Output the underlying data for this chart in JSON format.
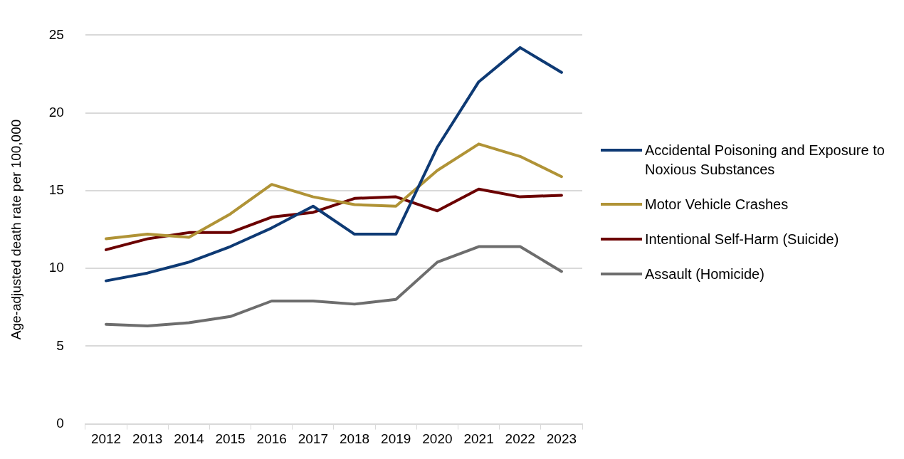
{
  "chart_data": {
    "type": "line",
    "ylabel": "Age-adjusted death rate per 100,000",
    "categories": [
      "2012",
      "2013",
      "2014",
      "2015",
      "2016",
      "2017",
      "2018",
      "2019",
      "2020",
      "2021",
      "2022",
      "2023"
    ],
    "series": [
      {
        "name": "Accidental Poisoning and Exposure to Noxious Substances",
        "color": "#0e3a74",
        "values": [
          9.2,
          9.7,
          10.4,
          11.4,
          12.6,
          14.0,
          12.2,
          12.2,
          17.8,
          22.0,
          24.2,
          22.6
        ]
      },
      {
        "name": "Motor Vehicle Crashes",
        "color": "#b09336",
        "values": [
          11.9,
          12.2,
          12.0,
          13.5,
          15.4,
          14.6,
          14.1,
          14.0,
          16.3,
          18.0,
          17.2,
          15.9
        ]
      },
      {
        "name": "Intentional Self-Harm (Suicide)",
        "color": "#6b0000",
        "values": [
          11.2,
          11.9,
          12.3,
          12.3,
          13.3,
          13.6,
          14.5,
          14.6,
          13.7,
          15.1,
          14.6,
          14.7
        ]
      },
      {
        "name": "Assault (Homicide)",
        "color": "#6d6d6d",
        "values": [
          6.4,
          6.3,
          6.5,
          6.9,
          7.9,
          7.9,
          7.7,
          8.0,
          10.4,
          11.4,
          11.4,
          9.8
        ]
      }
    ],
    "ylim": [
      0,
      25
    ],
    "yticks": [
      0,
      5,
      10,
      15,
      20,
      25
    ],
    "grid": "y",
    "legend": "right",
    "marker": "none",
    "line_style": "solid"
  }
}
